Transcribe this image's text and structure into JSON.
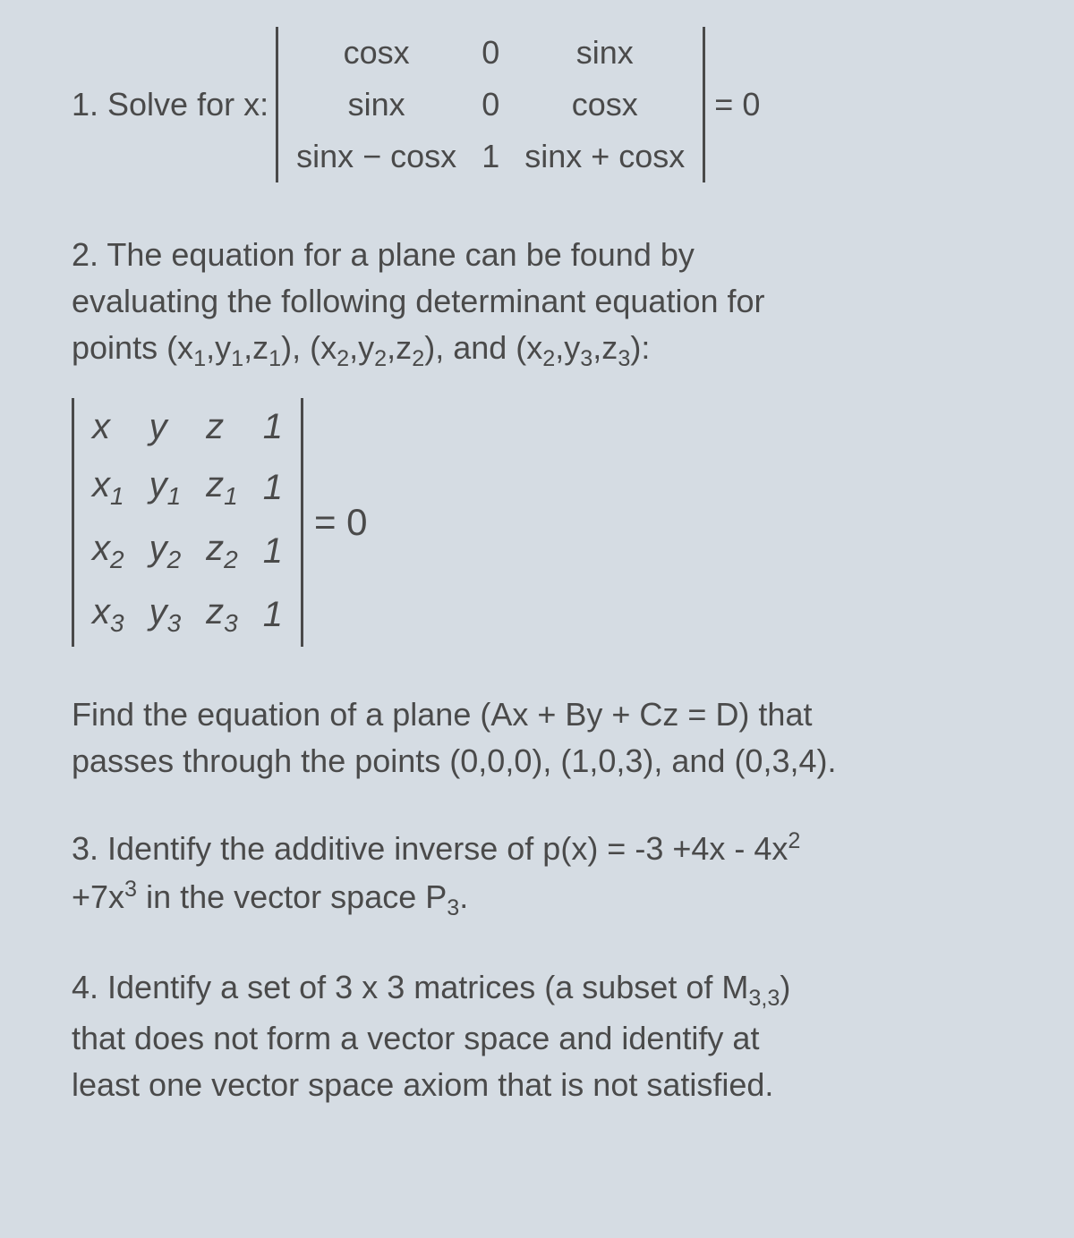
{
  "problem1": {
    "label": "1. Solve for x:",
    "matrix": {
      "r1c1": "cosx",
      "r1c2": "0",
      "r1c3": "sinx",
      "r2c1": "sinx",
      "r2c2": "0",
      "r2c3": "cosx",
      "r3c1": "sinx − cosx",
      "r3c2": "1",
      "r3c3": "sinx + cosx"
    },
    "rhs": "= 0"
  },
  "problem2": {
    "text_line1": "2. The equation for a plane can be found by",
    "text_line2": "evaluating the following determinant equation for",
    "text_line3": "points (x",
    "text_line3b": ",y",
    "text_line3c": ",z",
    "text_line3d": "), (x",
    "text_line3e": ",y",
    "text_line3f": ",z",
    "text_line3g": "), and (x",
    "text_line3h": ",y",
    "text_line3i": ",z",
    "text_line3j": "):",
    "matrix": {
      "r1c1": "x",
      "r1c2": "y",
      "r1c3": "z",
      "r1c4": "1",
      "r2c1": "x",
      "r2c2": "y",
      "r2c3": "z",
      "r2c4": "1",
      "r3c1": "x",
      "r3c2": "y",
      "r3c3": "z",
      "r3c4": "1",
      "r4c1": "x",
      "r4c2": "y",
      "r4c3": "z",
      "r4c4": "1"
    },
    "rhs": "= 0",
    "followup_line1": "Find the equation of a plane (Ax + By + Cz = D) that",
    "followup_line2": "passes through the points (0,0,0), (1,0,3), and (0,3,4)."
  },
  "problem3": {
    "line1_a": "3. Identify the additive inverse of p(x) = -3 +4x - 4x",
    "line1_sup": "2",
    "line2_a": "+7x",
    "line2_sup": "3",
    "line2_b": " in the vector space P",
    "line2_sub": "3",
    "line2_c": "."
  },
  "problem4": {
    "line1_a": "4. Identify a set of 3 x 3 matrices (a subset of M",
    "line1_sub": "3,3",
    "line1_b": ")",
    "line2": "that does not form a vector space and identify at",
    "line3": "least one vector space axiom that is not satisfied."
  },
  "subs": {
    "s1": "1",
    "s2": "2",
    "s3": "3"
  },
  "styling": {
    "background_color": "#d5dce3",
    "text_color": "#4a4a4a",
    "font_family": "Arial",
    "body_fontsize": 36,
    "det_fontsize": 40
  }
}
